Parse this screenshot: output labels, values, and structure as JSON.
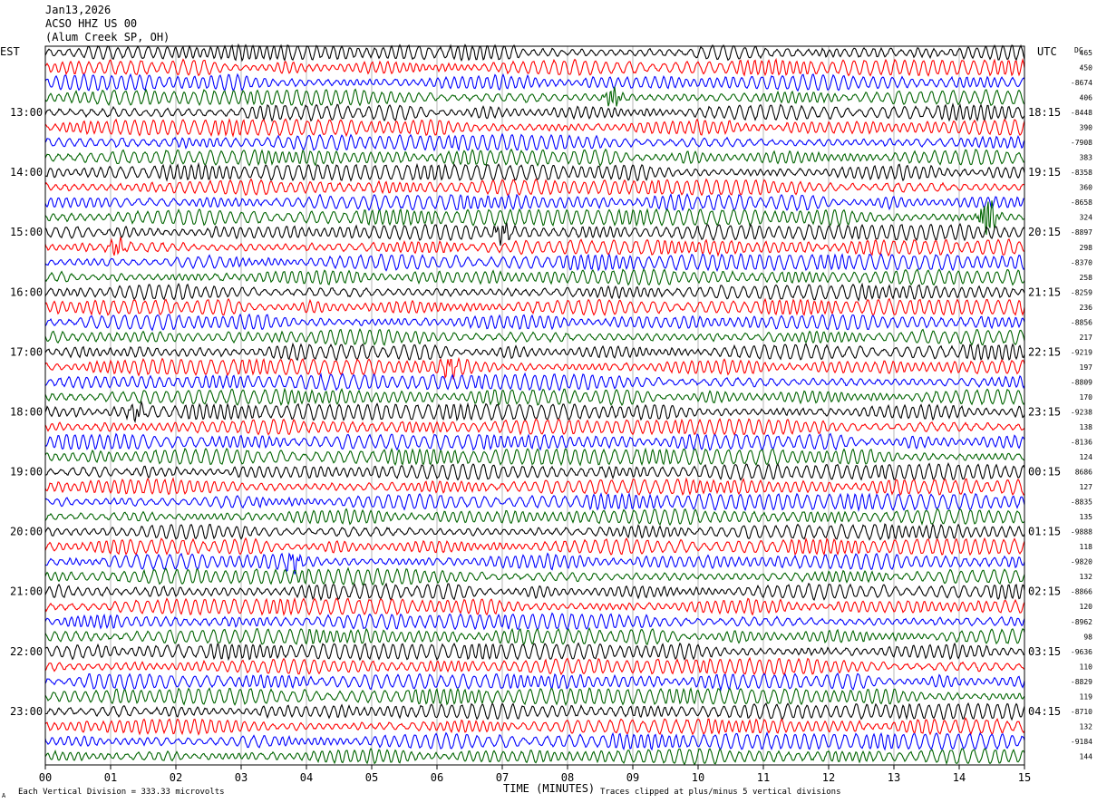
{
  "header": {
    "date": "Jan13,2026",
    "station": "ACSO HHZ US 00",
    "site": "(Alum Creek SP, OH)"
  },
  "footer": {
    "scale_note": "Each Vertical Division =  333.33 microvolts",
    "clip_note": "Traces clipped at plus/minus 5 vertical divisions",
    "corner_mark": "A"
  },
  "chart_data": {
    "type": "line",
    "title": "",
    "xlabel": "TIME (MINUTES)",
    "ylabel": "",
    "left_timezone": "EST",
    "right_timezone": "UTC",
    "dc_header": "DC",
    "xlim": [
      0,
      15
    ],
    "x_ticks": [
      "00",
      "01",
      "02",
      "03",
      "04",
      "05",
      "06",
      "07",
      "08",
      "09",
      "10",
      "11",
      "12",
      "13",
      "14",
      "15"
    ],
    "grid": "vertical lines at each minute",
    "traces_per_hour": 4,
    "minutes_per_trace": 15,
    "trace_colors": [
      "#000000",
      "#ff0000",
      "#0000ff",
      "#006400"
    ],
    "left_hour_labels": [
      "13:00",
      "14:00",
      "15:00",
      "16:00",
      "17:00",
      "18:00",
      "19:00",
      "20:00",
      "21:00",
      "22:00",
      "23:00"
    ],
    "right_hour_labels": [
      "18:15",
      "19:15",
      "20:15",
      "21:15",
      "22:15",
      "23:15",
      "00:15",
      "01:15",
      "02:15",
      "03:15",
      "04:15"
    ],
    "dc_offsets": [
      "465",
      "450",
      "-8674",
      "406",
      "-8448",
      "390",
      "-7908",
      "383",
      "-8358",
      "360",
      "-8658",
      "324",
      "-8897",
      "298",
      "-8370",
      "258",
      "-8259",
      "236",
      "-8856",
      "217",
      "-9219",
      "197",
      "-8809",
      "170",
      "-9238",
      "138",
      "-8136",
      "124",
      "8686",
      "127",
      "-8835",
      "135",
      "-9888",
      "118",
      "-9820",
      "132",
      "-8866",
      "120",
      "-8962",
      "98",
      "-9636",
      "110",
      "-8829",
      "119",
      "-8710",
      "132",
      "-9184",
      "144"
    ],
    "events": [
      {
        "trace": 3,
        "minute": 8.7,
        "amplitude": 2.2
      },
      {
        "trace": 11,
        "minute": 14.45,
        "amplitude": 4.5
      },
      {
        "trace": 12,
        "minute": 7.0,
        "amplitude": 2.0
      },
      {
        "trace": 13,
        "minute": 1.1,
        "amplitude": 1.8
      },
      {
        "trace": 21,
        "minute": 6.2,
        "amplitude": 1.6
      },
      {
        "trace": 24,
        "minute": 1.4,
        "amplitude": 1.7
      },
      {
        "trace": 34,
        "minute": 3.8,
        "amplitude": 1.6
      }
    ]
  }
}
